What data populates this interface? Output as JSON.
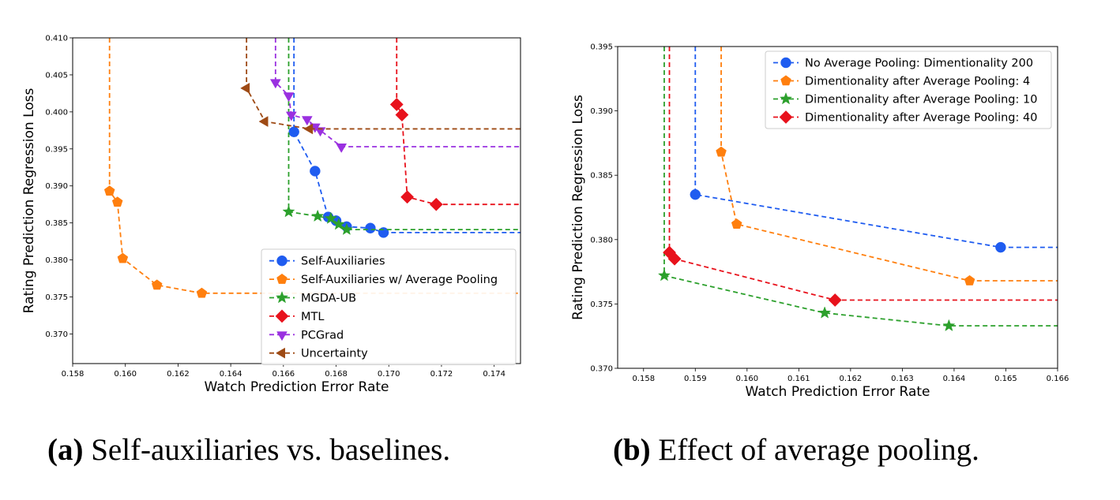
{
  "chart_data": [
    {
      "type": "line",
      "xlabel": "Watch Prediction Error Rate",
      "ylabel": "Rating Prediction Regression Loss",
      "xlim": [
        0.158,
        0.175
      ],
      "ylim": [
        0.366,
        0.41
      ],
      "xticks": [
        "0.158",
        "0.160",
        "0.162",
        "0.164",
        "0.166",
        "0.168",
        "0.170",
        "0.172",
        "0.174"
      ],
      "yticks": [
        "0.370",
        "0.375",
        "0.380",
        "0.385",
        "0.390",
        "0.395",
        "0.400",
        "0.405",
        "0.410"
      ],
      "legend_position": "bottom-right",
      "series": [
        {
          "name": "Self-Auxiliaries",
          "color": "#1f5cf0",
          "marker": "circle",
          "points": [
            [
              0.1664,
              0.3973
            ],
            [
              0.1672,
              0.392
            ],
            [
              0.1677,
              0.3858
            ],
            [
              0.168,
              0.3853
            ],
            [
              0.1684,
              0.3845
            ],
            [
              0.1693,
              0.3843
            ],
            [
              0.1698,
              0.3837
            ]
          ],
          "up_from": 0.1664,
          "right_from": 0.3837
        },
        {
          "name": "Self-Auxiliaries w/ Average Pooling",
          "color": "#ff7f0e",
          "marker": "pentagon",
          "points": [
            [
              0.1594,
              0.3893
            ],
            [
              0.1597,
              0.3878
            ],
            [
              0.1599,
              0.3802
            ],
            [
              0.1612,
              0.3766
            ],
            [
              0.1629,
              0.3755
            ]
          ],
          "up_from": 0.1594,
          "right_from": 0.3755
        },
        {
          "name": "MGDA-UB",
          "color": "#2ca02c",
          "marker": "star",
          "points": [
            [
              0.1662,
              0.3865
            ],
            [
              0.1673,
              0.3859
            ],
            [
              0.1678,
              0.3856
            ],
            [
              0.1681,
              0.3848
            ],
            [
              0.1684,
              0.3841
            ]
          ],
          "up_from": 0.1662,
          "right_from": 0.3841
        },
        {
          "name": "MTL",
          "color": "#e8121c",
          "marker": "diamond",
          "points": [
            [
              0.1703,
              0.401
            ],
            [
              0.1705,
              0.3996
            ],
            [
              0.1707,
              0.3885
            ],
            [
              0.1718,
              0.3875
            ]
          ],
          "up_from": 0.1703,
          "right_from": 0.3875
        },
        {
          "name": "PCGrad",
          "color": "#9a30e0",
          "marker": "triangle-down",
          "points": [
            [
              0.1657,
              0.404
            ],
            [
              0.1662,
              0.4022
            ],
            [
              0.1663,
              0.3996
            ],
            [
              0.1669,
              0.399
            ],
            [
              0.1672,
              0.398
            ],
            [
              0.1674,
              0.3975
            ],
            [
              0.1682,
              0.3953
            ]
          ],
          "up_from": 0.1657,
          "right_from": 0.3953
        },
        {
          "name": "Uncertainty",
          "color": "#9e4a14",
          "marker": "triangle-left",
          "points": [
            [
              0.1646,
              0.4032
            ],
            [
              0.1653,
              0.3987
            ],
            [
              0.167,
              0.3977
            ]
          ],
          "up_from": 0.1646,
          "right_from": 0.3977
        }
      ]
    },
    {
      "type": "line",
      "xlabel": "Watch Prediction Error Rate",
      "ylabel": "Rating Prediction Regression Loss",
      "xlim": [
        0.1575,
        0.166
      ],
      "ylim": [
        0.37,
        0.395
      ],
      "xticks": [
        "0.158",
        "0.159",
        "0.160",
        "0.161",
        "0.162",
        "0.163",
        "0.164",
        "0.165",
        "0.166"
      ],
      "yticks": [
        "0.370",
        "0.375",
        "0.380",
        "0.385",
        "0.390",
        "0.395"
      ],
      "legend_position": "top-right",
      "series": [
        {
          "name": "No Average Pooling: Dimentionality 200",
          "color": "#1f5cf0",
          "marker": "circle",
          "points": [
            [
              0.159,
              0.3835
            ],
            [
              0.1649,
              0.3794
            ]
          ],
          "up_from": 0.159,
          "right_from": 0.3794
        },
        {
          "name": "Dimentionality after Average Pooling: 4",
          "color": "#ff7f0e",
          "marker": "pentagon",
          "points": [
            [
              0.1595,
              0.3868
            ],
            [
              0.1598,
              0.3812
            ],
            [
              0.1643,
              0.3768
            ]
          ],
          "up_from": 0.1595,
          "right_from": 0.3768
        },
        {
          "name": "Dimentionality after Average Pooling: 10",
          "color": "#2ca02c",
          "marker": "star",
          "points": [
            [
              0.1584,
              0.3772
            ],
            [
              0.1615,
              0.3743
            ],
            [
              0.1639,
              0.3733
            ]
          ],
          "up_from": 0.1584,
          "right_from": 0.3733
        },
        {
          "name": "Dimentionality after Average Pooling: 40",
          "color": "#e8121c",
          "marker": "diamond",
          "points": [
            [
              0.1585,
              0.379
            ],
            [
              0.1586,
              0.3785
            ],
            [
              0.1617,
              0.3753
            ]
          ],
          "up_from": 0.1585,
          "right_from": 0.3753
        }
      ]
    }
  ],
  "captions": [
    {
      "label": "(a)",
      "text": "Self-auxiliaries vs. baselines."
    },
    {
      "label": "(b)",
      "text": "Effect of average pooling."
    }
  ]
}
